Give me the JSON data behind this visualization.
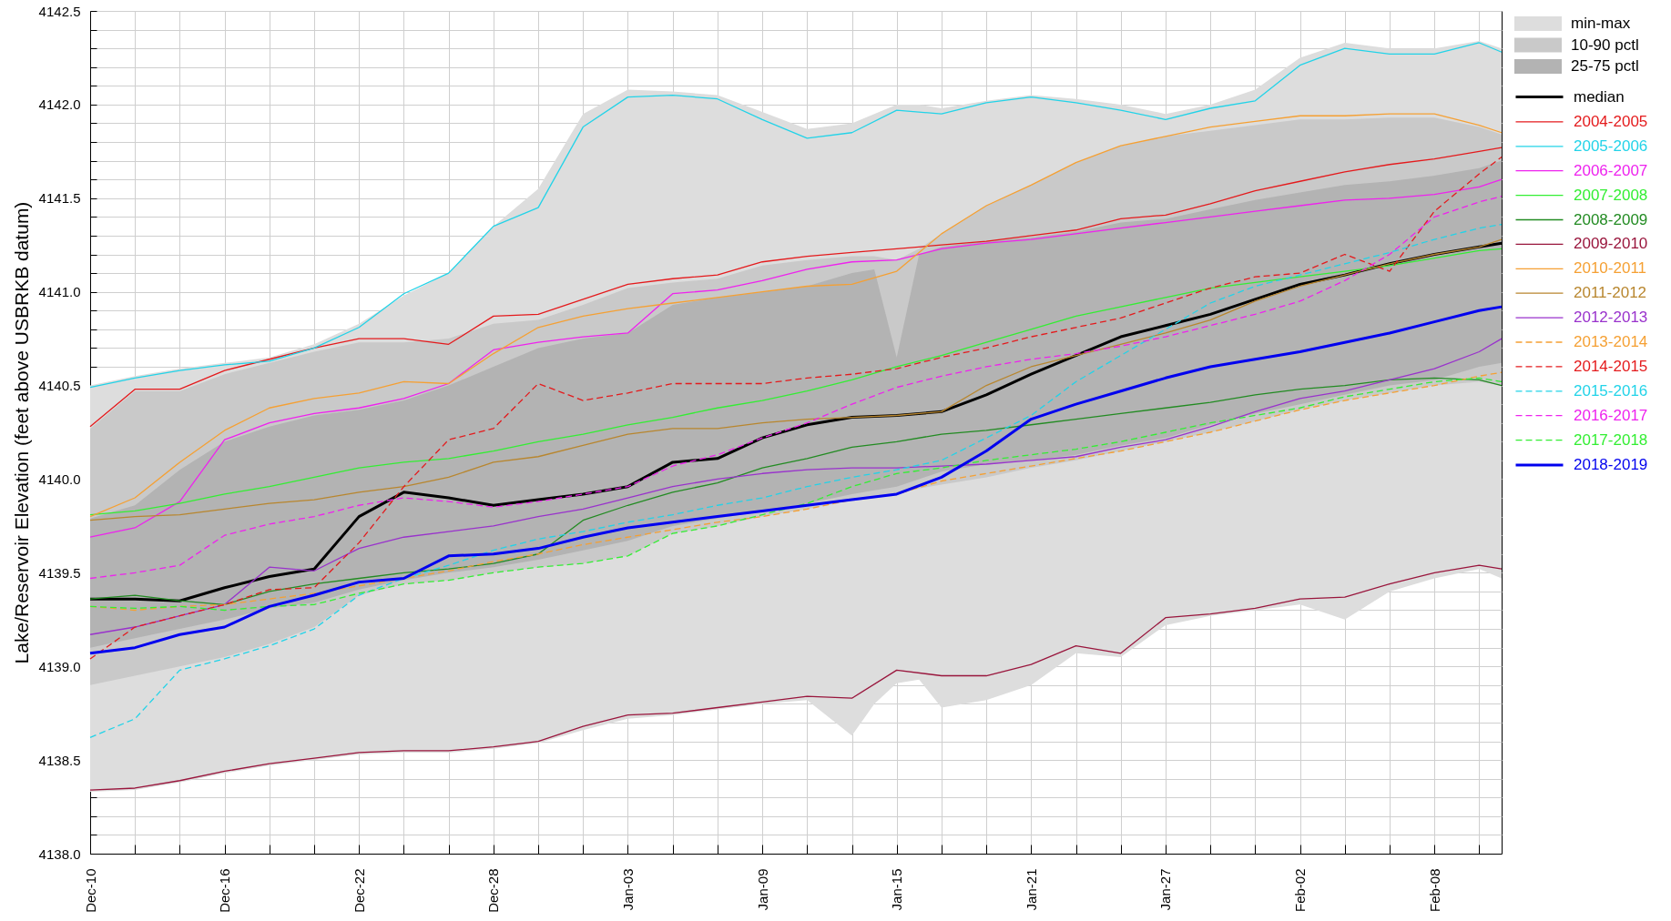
{
  "chart_data": {
    "type": "line",
    "ylabel": "Lake/Reservoir Elevation (feet above USBRKB datum)",
    "x": [
      "2018-12-10",
      "2018-12-12",
      "2018-12-14",
      "2018-12-16",
      "2018-12-18",
      "2018-12-20",
      "2018-12-22",
      "2018-12-24",
      "2018-12-26",
      "2018-12-28",
      "2018-12-30",
      "2019-01-01",
      "2019-01-03",
      "2019-01-05",
      "2019-01-07",
      "2019-01-09",
      "2019-01-11",
      "2019-01-13",
      "2019-01-15",
      "2019-01-17",
      "2019-01-19",
      "2019-01-21",
      "2019-01-23",
      "2019-01-25",
      "2019-01-27",
      "2019-01-29",
      "2019-01-31",
      "2019-02-02",
      "2019-02-04",
      "2019-02-06",
      "2019-02-08",
      "2019-02-10",
      "2019-02-11"
    ],
    "xlim": [
      "2018-12-10",
      "2019-02-11"
    ],
    "xticks": [
      {
        "value": "2018-12-10",
        "label": "Dec-10"
      },
      {
        "value": "2018-12-12",
        "label": null
      },
      {
        "value": "2018-12-14",
        "label": null
      },
      {
        "value": "2018-12-16",
        "label": "Dec-16"
      },
      {
        "value": "2018-12-18",
        "label": null
      },
      {
        "value": "2018-12-20",
        "label": null
      },
      {
        "value": "2018-12-22",
        "label": "Dec-22"
      },
      {
        "value": "2018-12-24",
        "label": null
      },
      {
        "value": "2018-12-26",
        "label": null
      },
      {
        "value": "2018-12-28",
        "label": "Dec-28"
      },
      {
        "value": "2018-12-30",
        "label": null
      },
      {
        "value": "2019-01-01",
        "label": null
      },
      {
        "value": "2019-01-03",
        "label": "Jan-03"
      },
      {
        "value": "2019-01-05",
        "label": null
      },
      {
        "value": "2019-01-07",
        "label": null
      },
      {
        "value": "2019-01-09",
        "label": "Jan-09"
      },
      {
        "value": "2019-01-11",
        "label": null
      },
      {
        "value": "2019-01-13",
        "label": null
      },
      {
        "value": "2019-01-15",
        "label": "Jan-15"
      },
      {
        "value": "2019-01-17",
        "label": null
      },
      {
        "value": "2019-01-19",
        "label": null
      },
      {
        "value": "2019-01-21",
        "label": "Jan-21"
      },
      {
        "value": "2019-01-23",
        "label": null
      },
      {
        "value": "2019-01-25",
        "label": null
      },
      {
        "value": "2019-01-27",
        "label": "Jan-27"
      },
      {
        "value": "2019-01-29",
        "label": null
      },
      {
        "value": "2019-01-31",
        "label": null
      },
      {
        "value": "2019-02-02",
        "label": "Feb-02"
      },
      {
        "value": "2019-02-04",
        "label": null
      },
      {
        "value": "2019-02-06",
        "label": null
      },
      {
        "value": "2019-02-08",
        "label": "Feb-08"
      },
      {
        "value": "2019-02-10",
        "label": null
      }
    ],
    "ylim": [
      4138,
      4142.5
    ],
    "yticks": [
      {
        "value": 4138,
        "label": "4138.0"
      },
      {
        "value": 4138.1,
        "label": null
      },
      {
        "value": 4138.2,
        "label": null
      },
      {
        "value": 4138.3,
        "label": null
      },
      {
        "value": 4138.4,
        "label": null
      },
      4138.5,
      {
        "value": 4138.6,
        "label": null
      },
      {
        "value": 4138.7,
        "label": null
      },
      {
        "value": 4138.8,
        "label": null
      },
      {
        "value": 4138.9,
        "label": null
      },
      {
        "value": 4139,
        "label": "4139.0"
      },
      {
        "value": 4139.1,
        "label": null
      },
      {
        "value": 4139.2,
        "label": null
      },
      {
        "value": 4139.3,
        "label": null
      },
      {
        "value": 4139.4,
        "label": null
      },
      4139.5,
      {
        "value": 4139.6,
        "label": null
      },
      {
        "value": 4139.7,
        "label": null
      },
      {
        "value": 4139.8,
        "label": null
      },
      {
        "value": 4139.9,
        "label": null
      },
      {
        "value": 4140,
        "label": "4140.0"
      },
      {
        "value": 4140.1,
        "label": null
      },
      {
        "value": 4140.2,
        "label": null
      },
      {
        "value": 4140.3,
        "label": null
      },
      {
        "value": 4140.4,
        "label": null
      },
      4140.5,
      {
        "value": 4140.6,
        "label": null
      },
      {
        "value": 4140.7,
        "label": null
      },
      {
        "value": 4140.8,
        "label": null
      },
      {
        "value": 4140.9,
        "label": null
      },
      {
        "value": 4141,
        "label": "4141.0"
      },
      {
        "value": 4141.1,
        "label": null
      },
      {
        "value": 4141.2,
        "label": null
      },
      {
        "value": 4141.3,
        "label": null
      },
      {
        "value": 4141.4,
        "label": null
      },
      4141.5,
      {
        "value": 4141.6,
        "label": null
      },
      {
        "value": 4141.7,
        "label": null
      },
      {
        "value": 4141.8,
        "label": null
      },
      {
        "value": 4141.9,
        "label": null
      },
      {
        "value": 4142,
        "label": "4142.0"
      },
      {
        "value": 4142.1,
        "label": null
      },
      {
        "value": 4142.2,
        "label": null
      },
      {
        "value": 4142.3,
        "label": null
      },
      {
        "value": 4142.4,
        "label": null
      },
      4142.5
    ],
    "grid": true,
    "legend": "top right",
    "series": [
      {
        "name": "min-max",
        "color": "#dddddd",
        "x": [
          "2018-12-10",
          "2018-12-12",
          "2018-12-14",
          "2018-12-16",
          "2018-12-18",
          "2018-12-20",
          "2018-12-22",
          "2018-12-24",
          "2018-12-26",
          "2018-12-28",
          "2018-12-30",
          "2019-01-01",
          "2019-01-03",
          "2019-01-05",
          "2019-01-07",
          "2019-01-09",
          "2019-01-11",
          "2019-01-13",
          "2019-01-14",
          "2019-01-15",
          "2019-01-16",
          "2019-01-17",
          "2019-01-19",
          "2019-01-21",
          "2019-01-23",
          "2019-01-25",
          "2019-01-27",
          "2019-01-29",
          "2019-01-31",
          "2019-02-02",
          "2019-02-04",
          "2019-02-06",
          "2019-02-08",
          "2019-02-10",
          "2019-02-11"
        ],
        "values": [
          null,
          null,
          null,
          null,
          null,
          null,
          null,
          null,
          null,
          null,
          null,
          null,
          null,
          null,
          null,
          null,
          null,
          null,
          null,
          null,
          null,
          null,
          null,
          null,
          null,
          null,
          null,
          null,
          null,
          null,
          null,
          null,
          null,
          null,
          null
        ],
        "lower": [
          4138.33,
          4138.34,
          4138.38,
          4138.43,
          4138.47,
          4138.5,
          4138.53,
          4138.54,
          4138.54,
          4138.56,
          4138.59,
          4138.66,
          4138.72,
          4138.74,
          4138.77,
          4138.8,
          4138.82,
          4138.63,
          4138.8,
          4138.91,
          4138.93,
          4138.78,
          4138.82,
          4138.9,
          4139.07,
          4139.05,
          4139.22,
          4139.27,
          4139.3,
          4139.33,
          4139.25,
          4139.4,
          4139.47,
          4139.52,
          4139.47
        ],
        "upper": [
          4140.5,
          4140.55,
          4140.59,
          4140.62,
          4140.65,
          4140.72,
          4140.83,
          4140.98,
          4141.1,
          4141.35,
          4141.55,
          4141.95,
          4142.08,
          4142.07,
          4142.05,
          4141.96,
          4141.87,
          4141.9,
          4141.95,
          4142.0,
          4142.0,
          4141.98,
          4142.02,
          4142.05,
          4142.03,
          4142.0,
          4141.95,
          4142.0,
          4142.08,
          4142.25,
          4142.33,
          4142.3,
          4142.3,
          4142.34,
          4142.3
        ]
      },
      {
        "name": "10-90 pctl",
        "color": "#c9c9c9",
        "x": [
          "2018-12-10",
          "2018-12-12",
          "2018-12-14",
          "2018-12-16",
          "2018-12-18",
          "2018-12-20",
          "2018-12-22",
          "2018-12-24",
          "2018-12-26",
          "2018-12-28",
          "2018-12-30",
          "2019-01-01",
          "2019-01-03",
          "2019-01-05",
          "2019-01-07",
          "2019-01-09",
          "2019-01-11",
          "2019-01-13",
          "2019-01-14",
          "2019-01-15",
          "2019-01-16",
          "2019-01-17",
          "2019-01-19",
          "2019-01-21",
          "2019-01-23",
          "2019-01-25",
          "2019-01-27",
          "2019-01-29",
          "2019-01-31",
          "2019-02-02",
          "2019-02-04",
          "2019-02-06",
          "2019-02-08",
          "2019-02-10",
          "2019-02-11"
        ],
        "values": [
          null,
          null,
          null,
          null,
          null,
          null,
          null,
          null,
          null,
          null,
          null,
          null,
          null,
          null,
          null,
          null,
          null,
          null,
          null,
          null,
          null,
          null,
          null,
          null,
          null,
          null,
          null,
          null,
          null,
          null,
          null,
          null,
          null,
          null,
          null
        ],
        "lower": [
          4138.9,
          4138.95,
          4139.0,
          4139.05,
          4139.12,
          4139.21,
          4139.38,
          4139.44,
          4139.46,
          4139.5,
          4139.53,
          4139.55,
          4139.59,
          4139.71,
          4139.75,
          4139.8,
          4139.84,
          4139.89,
          4139.9,
          4139.92,
          4139.95,
          4139.97,
          4140.01,
          4140.06,
          4140.1,
          4140.15,
          4140.2,
          4140.25,
          4140.31,
          4140.37,
          4140.42,
          4140.46,
          4140.5,
          4140.52,
          4140.5
        ],
        "upper": [
          4140.27,
          4140.47,
          4140.47,
          4140.56,
          4140.62,
          4140.68,
          4140.73,
          4140.73,
          4140.75,
          4140.83,
          4140.85,
          4140.93,
          4141.02,
          4141.05,
          4141.07,
          4141.14,
          4141.17,
          4141.19,
          4141.19,
          4141.17,
          4141.23,
          4141.31,
          4141.46,
          4141.57,
          4141.69,
          4141.78,
          4141.83,
          4141.86,
          4141.89,
          4141.92,
          4141.92,
          4141.93,
          4141.93,
          4141.88,
          4141.84
        ]
      },
      {
        "name": "25-75 pctl",
        "color": "#b3b3b3",
        "x": [
          "2018-12-10",
          "2018-12-12",
          "2018-12-14",
          "2018-12-16",
          "2018-12-18",
          "2018-12-20",
          "2018-12-22",
          "2018-12-24",
          "2018-12-26",
          "2018-12-28",
          "2018-12-30",
          "2019-01-01",
          "2019-01-03",
          "2019-01-05",
          "2019-01-07",
          "2019-01-09",
          "2019-01-11",
          "2019-01-13",
          "2019-01-14",
          "2019-01-15",
          "2019-01-16",
          "2019-01-17",
          "2019-01-19",
          "2019-01-21",
          "2019-01-23",
          "2019-01-25",
          "2019-01-27",
          "2019-01-29",
          "2019-01-31",
          "2019-02-02",
          "2019-02-04",
          "2019-02-06",
          "2019-02-08",
          "2019-02-10",
          "2019-02-11"
        ],
        "values": [
          null,
          null,
          null,
          null,
          null,
          null,
          null,
          null,
          null,
          null,
          null,
          null,
          null,
          null,
          null,
          null,
          null,
          null,
          null,
          null,
          null,
          null,
          null,
          null,
          null,
          null,
          null,
          null,
          null,
          null,
          null,
          null,
          null,
          null,
          null
        ],
        "lower": [
          4139.1,
          4139.15,
          4139.2,
          4139.25,
          4139.31,
          4139.34,
          4139.41,
          4139.46,
          4139.5,
          4139.53,
          4139.57,
          4139.62,
          4139.67,
          4139.75,
          4139.79,
          4139.83,
          4139.87,
          4139.92,
          4139.94,
          4139.96,
          4140.0,
          4140.04,
          4140.08,
          4140.1,
          4140.13,
          4140.18,
          4140.22,
          4140.29,
          4140.35,
          4140.4,
          4140.45,
          4140.5,
          4140.53,
          4140.6,
          4140.62
        ],
        "upper": [
          4139.79,
          4139.86,
          4140.05,
          4140.2,
          4140.28,
          4140.34,
          4140.37,
          4140.42,
          4140.5,
          4140.6,
          4140.7,
          4140.75,
          4140.78,
          4140.93,
          4140.97,
          4141.0,
          4141.03,
          4141.1,
          4141.12,
          4140.65,
          4141.2,
          4141.24,
          4141.27,
          4141.29,
          4141.32,
          4141.37,
          4141.39,
          4141.44,
          4141.49,
          4141.53,
          4141.57,
          4141.59,
          4141.62,
          4141.66,
          4141.7
        ]
      },
      {
        "name": "median",
        "color": "#000000",
        "values": [
          4139.36,
          4139.36,
          4139.35,
          4139.42,
          4139.48,
          4139.52,
          4139.8,
          4139.93,
          4139.9,
          4139.86,
          4139.89,
          4139.92,
          4139.96,
          4140.09,
          4140.11,
          4140.22,
          4140.29,
          4140.33,
          4140.34,
          4140.36,
          4140.45,
          4140.56,
          4140.66,
          4140.76,
          4140.82,
          4140.88,
          4140.96,
          4141.04,
          4141.09,
          4141.15,
          4141.2,
          4141.24,
          4141.26
        ]
      },
      {
        "name": "2004-2005",
        "color": "#e41a1c",
        "values": [
          4140.28,
          4140.48,
          4140.48,
          4140.58,
          4140.64,
          4140.7,
          4140.75,
          4140.75,
          4140.72,
          4140.87,
          4140.88,
          4140.96,
          4141.04,
          4141.07,
          4141.09,
          4141.16,
          4141.19,
          4141.21,
          4141.23,
          4141.25,
          4141.27,
          4141.3,
          4141.33,
          4141.39,
          4141.41,
          4141.47,
          4141.54,
          4141.59,
          4141.64,
          4141.68,
          4141.71,
          4141.75,
          4141.77
        ]
      },
      {
        "name": "2005-2006",
        "color": "#22d3e8",
        "values": [
          4140.49,
          4140.54,
          4140.58,
          4140.61,
          4140.63,
          4140.7,
          4140.81,
          4140.99,
          4141.1,
          4141.35,
          4141.45,
          4141.88,
          4142.04,
          4142.05,
          4142.03,
          4141.92,
          4141.82,
          4141.85,
          4141.97,
          4141.95,
          4142.01,
          4142.04,
          4142.01,
          4141.97,
          4141.92,
          4141.98,
          4142.02,
          4142.21,
          4142.3,
          4142.27,
          4142.27,
          4142.33,
          4142.28
        ]
      },
      {
        "name": "2006-2007",
        "color": "#ee22ee",
        "values": [
          4139.69,
          4139.74,
          4139.88,
          4140.21,
          4140.3,
          4140.35,
          4140.38,
          4140.43,
          4140.51,
          4140.69,
          4140.73,
          4140.76,
          4140.78,
          4140.99,
          4141.01,
          4141.06,
          4141.12,
          4141.16,
          4141.17,
          4141.23,
          4141.26,
          4141.28,
          4141.31,
          4141.34,
          4141.37,
          4141.4,
          4141.43,
          4141.46,
          4141.49,
          4141.5,
          4141.52,
          4141.56,
          4141.6
        ]
      },
      {
        "name": "2007-2008",
        "color": "#33ee33",
        "values": [
          4139.81,
          4139.83,
          4139.87,
          4139.92,
          4139.96,
          4140.01,
          4140.06,
          4140.09,
          4140.11,
          4140.15,
          4140.2,
          4140.24,
          4140.29,
          4140.33,
          4140.38,
          4140.42,
          4140.47,
          4140.53,
          4140.6,
          4140.66,
          4140.73,
          4140.8,
          4140.87,
          4140.92,
          4140.97,
          4141.02,
          4141.05,
          4141.08,
          4141.11,
          4141.14,
          4141.18,
          4141.22,
          4141.23
        ]
      },
      {
        "name": "2008-2009",
        "color": "#228b22",
        "values": [
          4139.36,
          4139.38,
          4139.35,
          4139.33,
          4139.4,
          4139.44,
          4139.47,
          4139.5,
          4139.52,
          4139.55,
          4139.6,
          4139.78,
          4139.86,
          4139.93,
          4139.98,
          4140.06,
          4140.11,
          4140.17,
          4140.2,
          4140.24,
          4140.26,
          4140.29,
          4140.32,
          4140.35,
          4140.38,
          4140.41,
          4140.45,
          4140.48,
          4140.5,
          4140.53,
          4140.54,
          4140.53,
          4140.5
        ]
      },
      {
        "name": "2009-2010",
        "color": "#99153c",
        "values": [
          4138.34,
          4138.35,
          4138.39,
          4138.44,
          4138.48,
          4138.51,
          4138.54,
          4138.55,
          4138.55,
          4138.57,
          4138.6,
          4138.68,
          4138.74,
          4138.75,
          4138.78,
          4138.81,
          4138.84,
          4138.83,
          4138.98,
          4138.95,
          4138.95,
          4139.01,
          4139.11,
          4139.07,
          4139.26,
          4139.28,
          4139.31,
          4139.36,
          4139.37,
          4139.44,
          4139.5,
          4139.54,
          4139.52
        ]
      },
      {
        "name": "2010-2011",
        "color": "#f5a033",
        "values": [
          4139.8,
          4139.9,
          4140.09,
          4140.26,
          4140.38,
          4140.43,
          4140.46,
          4140.52,
          4140.51,
          4140.67,
          4140.81,
          4140.87,
          4140.91,
          4140.94,
          4140.97,
          4141.0,
          4141.03,
          4141.04,
          4141.11,
          4141.31,
          4141.46,
          4141.57,
          4141.69,
          4141.78,
          4141.83,
          4141.88,
          4141.91,
          4141.94,
          4141.94,
          4141.95,
          4141.95,
          4141.89,
          4141.85
        ]
      },
      {
        "name": "2011-2012",
        "color": "#b8862e",
        "values": [
          4139.78,
          4139.8,
          4139.81,
          4139.84,
          4139.87,
          4139.89,
          4139.93,
          4139.96,
          4140.01,
          4140.09,
          4140.12,
          4140.18,
          4140.24,
          4140.27,
          4140.27,
          4140.3,
          4140.32,
          4140.33,
          4140.34,
          4140.36,
          4140.5,
          4140.6,
          4140.66,
          4140.72,
          4140.78,
          4140.85,
          4140.95,
          4141.03,
          4141.09,
          4141.15,
          4141.2,
          4141.24,
          4141.28
        ]
      },
      {
        "name": "2012-2013",
        "color": "#9932cc",
        "values": [
          4139.17,
          4139.21,
          4139.27,
          4139.33,
          4139.53,
          4139.51,
          4139.63,
          4139.69,
          4139.72,
          4139.75,
          4139.8,
          4139.84,
          4139.9,
          4139.96,
          4140.0,
          4140.03,
          4140.05,
          4140.06,
          4140.06,
          4140.07,
          4140.08,
          4140.1,
          4140.12,
          4140.17,
          4140.21,
          4140.28,
          4140.36,
          4140.43,
          4140.47,
          4140.53,
          4140.59,
          4140.68,
          4140.75
        ]
      },
      {
        "name": "2013-2014",
        "color": "#f5a033",
        "line_style": "dashed",
        "values": [
          4139.32,
          4139.3,
          4139.32,
          4139.33,
          4139.36,
          4139.39,
          4139.43,
          4139.47,
          4139.51,
          4139.56,
          4139.6,
          4139.65,
          4139.69,
          4139.73,
          4139.77,
          4139.8,
          4139.84,
          4139.89,
          4139.92,
          4139.99,
          4140.03,
          4140.07,
          4140.11,
          4140.15,
          4140.2,
          4140.25,
          4140.31,
          4140.37,
          4140.42,
          4140.46,
          4140.5,
          4140.55,
          4140.57
        ]
      },
      {
        "name": "2014-2015",
        "color": "#e41a1c",
        "line_style": "dashed",
        "values": [
          4139.04,
          4139.21,
          4139.27,
          4139.33,
          4139.41,
          4139.42,
          4139.66,
          4139.96,
          4140.21,
          4140.27,
          4140.51,
          4140.42,
          4140.46,
          4140.51,
          4140.51,
          4140.51,
          4140.54,
          4140.56,
          4140.59,
          4140.65,
          4140.7,
          4140.76,
          4140.81,
          4140.86,
          4140.94,
          4141.02,
          4141.08,
          4141.1,
          4141.2,
          4141.11,
          4141.43,
          4141.63,
          4141.72
        ]
      },
      {
        "name": "2015-2016",
        "color": "#22d3e8",
        "line_style": "dashed",
        "values": [
          4138.62,
          4138.72,
          4138.98,
          4139.04,
          4139.11,
          4139.2,
          4139.38,
          4139.47,
          4139.54,
          4139.62,
          4139.68,
          4139.72,
          4139.77,
          4139.81,
          4139.86,
          4139.9,
          4139.96,
          4140.01,
          4140.05,
          4140.1,
          4140.22,
          4140.34,
          4140.52,
          4140.66,
          4140.8,
          4140.94,
          4141.03,
          4141.09,
          4141.15,
          4141.21,
          4141.28,
          4141.34,
          4141.36
        ]
      },
      {
        "name": "2016-2017",
        "color": "#ee22ee",
        "line_style": "dashed",
        "values": [
          4139.47,
          4139.5,
          4139.54,
          4139.7,
          4139.76,
          4139.8,
          4139.86,
          4139.9,
          4139.88,
          4139.85,
          4139.88,
          4139.92,
          4139.96,
          4140.07,
          4140.13,
          4140.22,
          4140.3,
          4140.4,
          4140.49,
          4140.55,
          4140.6,
          4140.64,
          4140.67,
          4140.71,
          4140.76,
          4140.82,
          4140.88,
          4140.95,
          4141.06,
          4141.2,
          4141.4,
          4141.48,
          4141.51
        ]
      },
      {
        "name": "2017-2018",
        "color": "#33ee33",
        "line_style": "dashed",
        "values": [
          4139.32,
          4139.31,
          4139.32,
          4139.3,
          4139.32,
          4139.33,
          4139.39,
          4139.44,
          4139.46,
          4139.5,
          4139.53,
          4139.55,
          4139.59,
          4139.71,
          4139.75,
          4139.81,
          4139.87,
          4139.96,
          4140.03,
          4140.06,
          4140.1,
          4140.13,
          4140.16,
          4140.2,
          4140.25,
          4140.3,
          4140.34,
          4140.38,
          4140.44,
          4140.48,
          4140.52,
          4140.54,
          4140.52
        ]
      },
      {
        "name": "2018-2019",
        "color": "#0000ee",
        "values": [
          4139.07,
          4139.1,
          4139.17,
          4139.21,
          4139.32,
          4139.38,
          4139.45,
          4139.47,
          4139.59,
          4139.6,
          4139.63,
          4139.69,
          4139.74,
          4139.77,
          4139.8,
          4139.83,
          4139.86,
          4139.89,
          4139.92,
          4140.01,
          4140.15,
          4140.32,
          4140.4,
          4140.47,
          4140.54,
          4140.6,
          4140.64,
          4140.68,
          4140.73,
          4140.78,
          4140.84,
          4140.9,
          4140.92
        ]
      }
    ]
  }
}
